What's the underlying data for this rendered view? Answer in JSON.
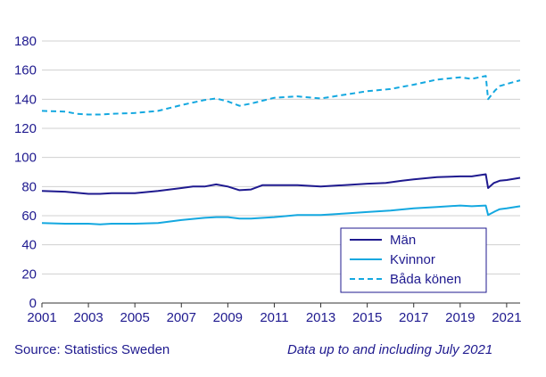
{
  "chart_data": {
    "type": "line",
    "title": "",
    "xlabel": "",
    "ylabel": "",
    "xlim": [
      2001,
      2021.58
    ],
    "ylim": [
      0,
      180
    ],
    "yticks": [
      0,
      20,
      40,
      60,
      80,
      100,
      120,
      140,
      160,
      180
    ],
    "xticks": [
      2001,
      2003,
      2005,
      2007,
      2009,
      2011,
      2013,
      2015,
      2017,
      2019,
      2021
    ],
    "grid": "horizontal",
    "legend_position": "bottom-right",
    "series": [
      {
        "name": "Män",
        "color": "#1f1a8f",
        "style": "solid",
        "x": [
          2001,
          2002,
          2003,
          2003.5,
          2004,
          2004.5,
          2005,
          2006,
          2007,
          2007.5,
          2008,
          2008.5,
          2009,
          2009.5,
          2010,
          2010.5,
          2011,
          2012,
          2013,
          2014,
          2015,
          2015.8,
          2016.5,
          2017,
          2018,
          2019,
          2019.5,
          2020.1,
          2020.2,
          2020.45,
          2020.7,
          2021,
          2021.58
        ],
        "values": [
          77,
          76.5,
          75,
          75,
          75.5,
          75.5,
          75.5,
          77,
          79,
          80,
          80,
          81.5,
          80,
          77.5,
          78,
          81,
          81,
          81,
          80,
          81,
          82,
          82.5,
          84,
          85,
          86.5,
          87,
          87,
          88.5,
          79,
          82.5,
          84,
          84.5,
          86
        ]
      },
      {
        "name": "Kvinnor",
        "color": "#14a8e0",
        "style": "solid",
        "x": [
          2001,
          2002,
          2003,
          2003.5,
          2004,
          2005,
          2006,
          2007,
          2008,
          2008.5,
          2009,
          2009.5,
          2010,
          2011,
          2012,
          2013,
          2014,
          2015,
          2016,
          2017,
          2018,
          2019,
          2019.5,
          2020.1,
          2020.2,
          2020.5,
          2020.7,
          2021,
          2021.58
        ],
        "values": [
          55,
          54.5,
          54.5,
          54,
          54.5,
          54.5,
          55,
          57,
          58.5,
          59,
          59,
          58,
          58,
          59,
          60.5,
          60.5,
          61.5,
          62.5,
          63.5,
          65,
          66,
          67,
          66.5,
          67,
          60.5,
          63,
          64.5,
          65,
          66.5
        ]
      },
      {
        "name": "Båda könen",
        "color": "#14a8e0",
        "style": "dashed",
        "x": [
          2001,
          2002,
          2002.5,
          2003,
          2003.5,
          2004,
          2005,
          2006,
          2007,
          2008,
          2008.5,
          2009,
          2009.5,
          2010,
          2011,
          2012,
          2013,
          2014,
          2015,
          2016,
          2017,
          2018,
          2019,
          2019.5,
          2020.1,
          2020.2,
          2020.5,
          2020.7,
          2021,
          2021.58
        ],
        "values": [
          132,
          131.5,
          130,
          129.5,
          129.5,
          130,
          130.5,
          132,
          136,
          139.5,
          140.5,
          138.5,
          135.5,
          137,
          141,
          142,
          140.5,
          143,
          145.5,
          147,
          150,
          153.5,
          155,
          154,
          156,
          140,
          146,
          149,
          150.5,
          153
        ]
      }
    ],
    "footer_left": "Source: Statistics Sweden",
    "footer_right": "Data up to and including July 2021"
  }
}
